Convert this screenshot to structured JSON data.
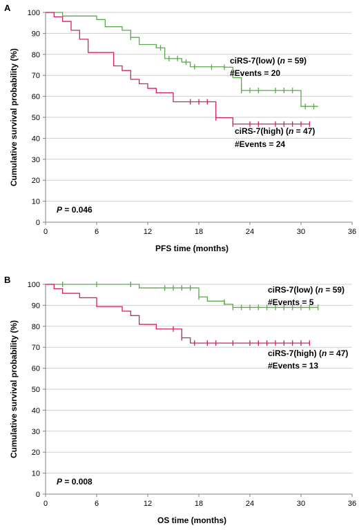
{
  "colors": {
    "low": "#5aa94a",
    "high": "#d81f5e",
    "grid": "#cfcfcf",
    "axis": "#7f7f7f"
  },
  "chart_data": [
    {
      "type": "line",
      "step": true,
      "panel": "A",
      "xlabel": "PFS time (months)",
      "ylabel": "Cumulative survival probability (%)",
      "xlim": [
        0,
        36
      ],
      "ylim": [
        0,
        100
      ],
      "xticks": [
        "0",
        "6",
        "12",
        "18",
        "24",
        "30",
        "36"
      ],
      "yticks": [
        "0",
        "10",
        "20",
        "30",
        "40",
        "50",
        "60",
        "70",
        "80",
        "90",
        "100"
      ],
      "grid": "horizontal",
      "p_label": "P",
      "p_value": " = 0.046",
      "series": [
        {
          "key": "low",
          "name_prefix": "ciRS-7(low)  (",
          "n_label": "n",
          "name_suffix": " = 59)",
          "events": "#Events = 20",
          "x": [
            0,
            2,
            6,
            7,
            9,
            10,
            11,
            13,
            14,
            16,
            17,
            21,
            22,
            23,
            30,
            32
          ],
          "y": [
            100,
            98.3,
            96.6,
            93.2,
            91.5,
            88.1,
            84.7,
            83.1,
            78.0,
            76.3,
            74.1,
            73.9,
            68.9,
            62.8,
            55.2,
            55.2
          ],
          "censored": [
            [
              10,
              88.1
            ],
            [
              13.5,
              83.1
            ],
            [
              14.5,
              78.0
            ],
            [
              15.5,
              78.0
            ],
            [
              16.5,
              76.3
            ],
            [
              17.5,
              74.1
            ],
            [
              19.5,
              73.9
            ],
            [
              21,
              73.9
            ],
            [
              23,
              62.8
            ],
            [
              24,
              62.8
            ],
            [
              25,
              62.8
            ],
            [
              27,
              62.8
            ],
            [
              28,
              62.8
            ],
            [
              29,
              62.8
            ],
            [
              30.5,
              55.2
            ],
            [
              31.5,
              55.2
            ]
          ]
        },
        {
          "key": "high",
          "name_prefix": "ciRS-7(high)  (",
          "n_label": "n",
          "name_suffix": " = 47)",
          "events": "#Events = 24",
          "x": [
            0,
            1,
            2,
            3,
            4,
            5,
            8,
            9,
            10,
            11,
            12,
            13,
            15,
            20,
            22,
            31
          ],
          "y": [
            100,
            97.9,
            95.7,
            91.5,
            87.2,
            80.9,
            74.5,
            72.3,
            68.1,
            66.0,
            63.8,
            61.7,
            57.4,
            49.8,
            46.8,
            46.8
          ],
          "censored": [
            [
              17,
              57.4
            ],
            [
              18,
              57.4
            ],
            [
              19,
              57.4
            ],
            [
              20,
              49.8
            ],
            [
              22,
              46.8
            ],
            [
              24,
              46.8
            ],
            [
              25,
              46.8
            ],
            [
              27,
              46.8
            ],
            [
              28,
              46.8
            ],
            [
              29,
              46.8
            ],
            [
              30,
              46.8
            ],
            [
              31,
              46.8
            ]
          ]
        }
      ]
    },
    {
      "type": "line",
      "step": true,
      "panel": "B",
      "xlabel": "OS time (months)",
      "ylabel": "Cumulative survival probability (%)",
      "xlim": [
        0,
        36
      ],
      "ylim": [
        0,
        100
      ],
      "xticks": [
        "0",
        "6",
        "12",
        "18",
        "24",
        "30",
        "36"
      ],
      "yticks": [
        "0",
        "10",
        "20",
        "30",
        "40",
        "50",
        "60",
        "70",
        "80",
        "90",
        "100"
      ],
      "grid": "horizontal",
      "p_label": "P",
      "p_value": " = 0.008",
      "series": [
        {
          "key": "low",
          "name_prefix": "ciRS-7(low)  (",
          "n_label": "n",
          "name_suffix": " = 59)",
          "events": "#Events = 5",
          "x": [
            0,
            11,
            18,
            19,
            21,
            22,
            32
          ],
          "y": [
            100,
            98.3,
            94.0,
            92.0,
            90.5,
            89.0,
            89.0
          ],
          "censored": [
            [
              2,
              100
            ],
            [
              6,
              100
            ],
            [
              10,
              100
            ],
            [
              14,
              98.3
            ],
            [
              15,
              98.3
            ],
            [
              16,
              98.3
            ],
            [
              17,
              98.3
            ],
            [
              18,
              94.0
            ],
            [
              21,
              91.5
            ],
            [
              22,
              89.0
            ],
            [
              23,
              89.0
            ],
            [
              24,
              89.0
            ],
            [
              25,
              89.0
            ],
            [
              26,
              89.0
            ],
            [
              27,
              89.0
            ],
            [
              28,
              89.0
            ],
            [
              29,
              89.0
            ],
            [
              30,
              89.0
            ],
            [
              31,
              89.0
            ],
            [
              32,
              89.0
            ]
          ]
        },
        {
          "key": "high",
          "name_prefix": "ciRS-7(high)  (",
          "n_label": "n",
          "name_suffix": " = 47)",
          "events": "#Events = 13",
          "x": [
            0,
            1,
            2,
            4,
            6,
            9,
            10,
            11,
            13,
            16,
            17,
            31
          ],
          "y": [
            100,
            97.9,
            95.7,
            93.6,
            89.4,
            87.2,
            85.1,
            80.9,
            78.7,
            74.5,
            72.0,
            72.0
          ],
          "censored": [
            [
              15,
              78.7
            ],
            [
              16,
              74.5
            ],
            [
              17.5,
              72.0
            ],
            [
              19,
              72.0
            ],
            [
              20,
              72.0
            ],
            [
              22,
              72.0
            ],
            [
              24,
              72.0
            ],
            [
              25,
              72.0
            ],
            [
              26,
              72.0
            ],
            [
              27,
              72.0
            ],
            [
              28,
              72.0
            ],
            [
              29,
              72.0
            ],
            [
              30,
              72.0
            ],
            [
              31,
              72.0
            ]
          ]
        }
      ]
    }
  ]
}
